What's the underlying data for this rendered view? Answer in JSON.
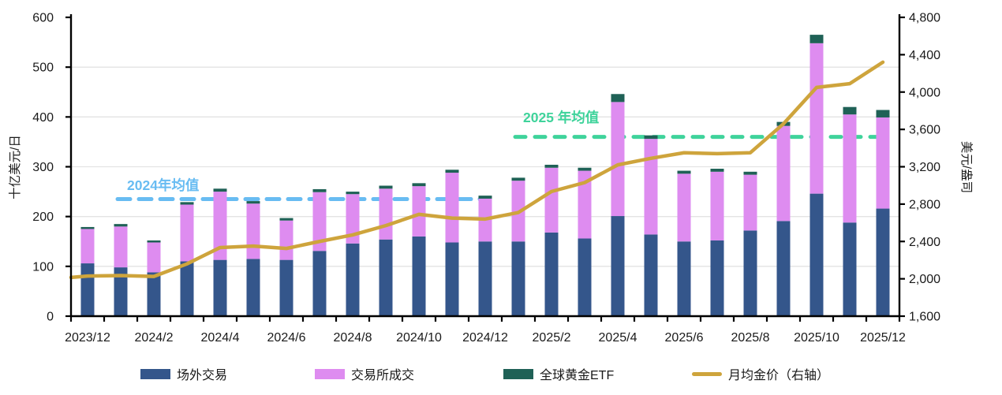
{
  "chart_data": {
    "type": "combo",
    "title": "",
    "x_categories": [
      "2023/12",
      "2024/1",
      "2024/2",
      "2024/3",
      "2024/4",
      "2024/5",
      "2024/6",
      "2024/7",
      "2024/8",
      "2024/9",
      "2024/10",
      "2024/11",
      "2024/12",
      "2025/1",
      "2025/2",
      "2025/3",
      "2025/4",
      "2025/5",
      "2025/6",
      "2025/7",
      "2025/8",
      "2025/9",
      "2025/10",
      "2025/11",
      "2025/12"
    ],
    "x_tick_labels": [
      "2023/12",
      "2024/2",
      "2024/4",
      "2024/6",
      "2024/8",
      "2024/10",
      "2024/12",
      "2025/2",
      "2025/4",
      "2025/6",
      "2025/8",
      "2025/10",
      "2025/12"
    ],
    "left_axis": {
      "label": "十亿美元/日",
      "min": 0,
      "max": 600,
      "step": 100,
      "tick_labels": [
        "0",
        "100",
        "200",
        "300",
        "400",
        "500",
        "600"
      ]
    },
    "right_axis": {
      "label": "美元/盎司",
      "min": 1600,
      "max": 4800,
      "step": 400,
      "tick_labels": [
        "1,600",
        "2,000",
        "2,400",
        "2,800",
        "3,200",
        "3,600",
        "4,000",
        "4,400",
        "4,800"
      ]
    },
    "bar_series": [
      {
        "name": "场外交易",
        "color": "#34568B",
        "values": [
          106,
          98,
          88,
          110,
          113,
          115,
          113,
          131,
          146,
          154,
          160,
          148,
          150,
          150,
          168,
          156,
          201,
          164,
          150,
          152,
          172,
          191,
          246,
          188,
          216
        ]
      },
      {
        "name": "交易所成交",
        "color": "#DE8CF0",
        "values": [
          69,
          82,
          60,
          114,
          137,
          111,
          79,
          118,
          99,
          102,
          101,
          140,
          86,
          122,
          130,
          136,
          229,
          192,
          136,
          138,
          112,
          191,
          302,
          217,
          183
        ]
      },
      {
        "name": "全球黄金ETF",
        "color": "#1F6156",
        "values": [
          4,
          5,
          4,
          5,
          6,
          5,
          5,
          6,
          5,
          6,
          6,
          6,
          6,
          6,
          6,
          6,
          16,
          7,
          6,
          6,
          6,
          8,
          17,
          15,
          15
        ]
      }
    ],
    "line_series": {
      "name": "月均金价（右轴）",
      "color": "#CEA43C",
      "axis": "right",
      "values": [
        2030,
        2035,
        2025,
        2160,
        2335,
        2350,
        2325,
        2400,
        2470,
        2570,
        2690,
        2650,
        2640,
        2710,
        2935,
        3030,
        3220,
        3290,
        3350,
        3340,
        3350,
        3660,
        4050,
        4090,
        4320
      ]
    },
    "annotations": [
      {
        "text": "2024年均值",
        "value": 235,
        "axis": "left",
        "color": "#68BCF2",
        "from": "2024/1",
        "to": "2024/12"
      },
      {
        "text": "2025 年均值",
        "value": 360,
        "axis": "left",
        "color": "#3FD39B",
        "from": "2025/1",
        "to": "2025/12"
      }
    ],
    "grid": true,
    "legend_position": "bottom"
  },
  "legend": {
    "items": [
      {
        "label": "场外交易",
        "color": "#34568B",
        "type": "swatch"
      },
      {
        "label": "交易所成交",
        "color": "#DE8CF0",
        "type": "swatch"
      },
      {
        "label": "全球黄金ETF",
        "color": "#1F6156",
        "type": "swatch"
      },
      {
        "label": "月均金价（右轴）",
        "color": "#CEA43C",
        "type": "line"
      }
    ]
  }
}
